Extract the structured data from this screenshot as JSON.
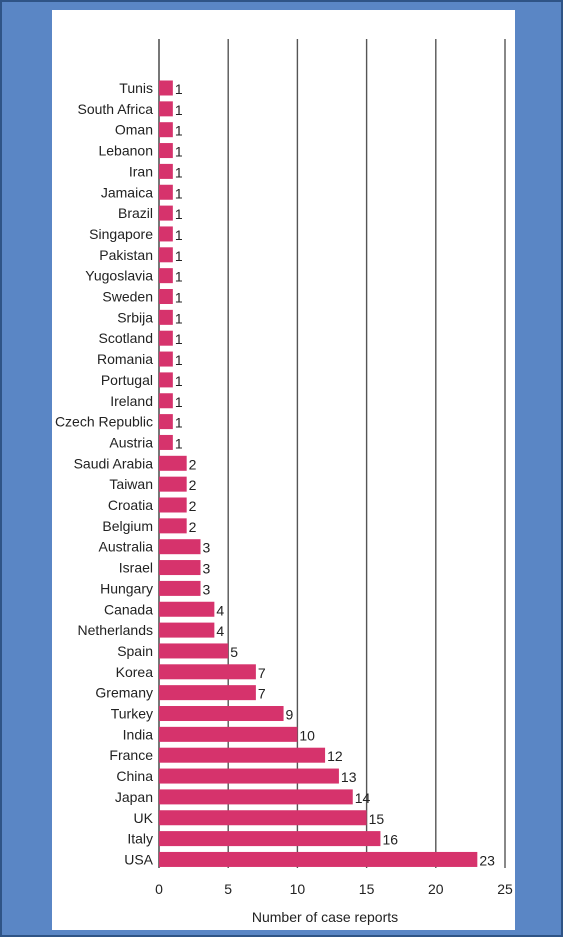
{
  "chart_data": {
    "type": "bar",
    "orientation": "horizontal",
    "categories": [
      "Tunis",
      "South Africa",
      "Oman",
      "Lebanon",
      "Iran",
      "Jamaica",
      "Brazil",
      "Singapore",
      "Pakistan",
      "Yugoslavia",
      "Sweden",
      "Srbija",
      "Scotland",
      "Romania",
      "Portugal",
      "Ireland",
      "Czech Republic",
      "Austria",
      "Saudi Arabia",
      "Taiwan",
      "Croatia",
      "Belgium",
      "Australia",
      "Israel",
      "Hungary",
      "Canada",
      "Netherlands",
      "Spain",
      "Korea",
      "Gremany",
      "Turkey",
      "India",
      "France",
      "China",
      "Japan",
      "UK",
      "Italy",
      "USA"
    ],
    "values": [
      1,
      1,
      1,
      1,
      1,
      1,
      1,
      1,
      1,
      1,
      1,
      1,
      1,
      1,
      1,
      1,
      1,
      1,
      2,
      2,
      2,
      2,
      3,
      3,
      3,
      4,
      4,
      5,
      7,
      7,
      9,
      10,
      12,
      13,
      14,
      15,
      16,
      23
    ],
    "xlabel": "Number of case reports",
    "ylabel": "",
    "xlim": [
      0,
      25
    ],
    "xticks": [
      0,
      5,
      10,
      15,
      20,
      25
    ],
    "grid": "vertical",
    "bar_color": "#d6336c"
  }
}
